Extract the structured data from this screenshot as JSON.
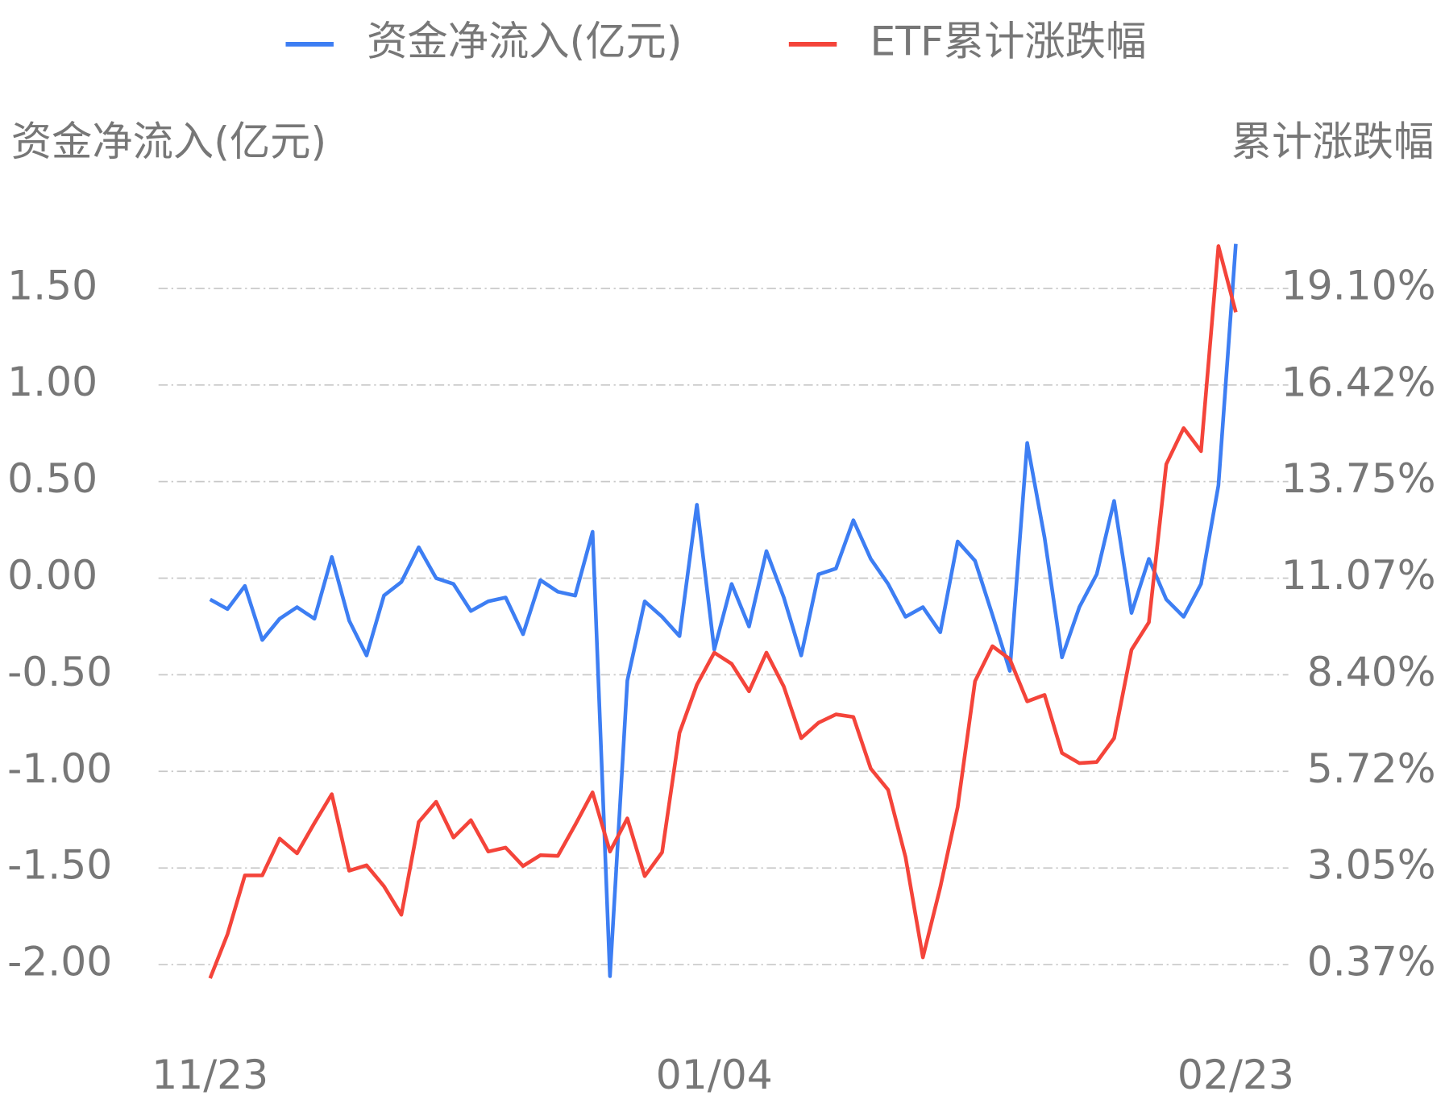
{
  "chart_data": {
    "type": "line",
    "legend": "top",
    "grid": true,
    "y_label": "资金净流入(亿元)",
    "y2_label": "累计涨跌幅",
    "categories": [
      "11/23",
      null,
      null,
      null,
      null,
      null,
      null,
      null,
      null,
      null,
      null,
      null,
      null,
      null,
      null,
      null,
      null,
      null,
      null,
      null,
      null,
      null,
      null,
      null,
      null,
      null,
      null,
      null,
      null,
      "01/04",
      null,
      null,
      null,
      null,
      null,
      null,
      null,
      null,
      null,
      null,
      null,
      null,
      null,
      null,
      null,
      null,
      null,
      null,
      null,
      null,
      null,
      null,
      null,
      null,
      null,
      null,
      null,
      null,
      null,
      "02/23"
    ],
    "ylim": [
      -2.0,
      1.5
    ],
    "yticks": [
      {
        "value": -2.0,
        "label": "-2.00"
      },
      {
        "value": -1.5,
        "label": "-1.50"
      },
      {
        "value": -1.0,
        "label": "-1.00"
      },
      {
        "value": -0.5,
        "label": "-0.50"
      },
      {
        "value": 0,
        "label": "0.00"
      },
      {
        "value": 0.5,
        "label": "0.50"
      },
      {
        "value": 1.0,
        "label": "1.00"
      },
      {
        "value": 1.5,
        "label": "1.50"
      }
    ],
    "y2lim": [
      0.37,
      19.1
    ],
    "y2ticks": [
      {
        "value": 0.37,
        "label": "0.37%"
      },
      {
        "value": 3.05,
        "label": "3.05%"
      },
      {
        "value": 5.72,
        "label": "5.72%"
      },
      {
        "value": 8.4,
        "label": "8.40%"
      },
      {
        "value": 11.07,
        "label": "11.07%"
      },
      {
        "value": 13.75,
        "label": "13.75%"
      },
      {
        "value": 16.42,
        "label": "16.42%"
      },
      {
        "value": 19.1,
        "label": "19.10%"
      }
    ],
    "series": [
      {
        "name": "资金净流入(亿元)",
        "color": "#3d7ef3",
        "values": [
          -0.11,
          -0.16,
          -0.04,
          -0.32,
          -0.21,
          -0.15,
          -0.21,
          0.11,
          -0.22,
          -0.4,
          -0.09,
          -0.02,
          0.16,
          0.0,
          -0.03,
          -0.17,
          -0.12,
          -0.1,
          -0.29,
          -0.01,
          -0.07,
          -0.09,
          0.24,
          -2.06,
          -0.53,
          -0.12,
          -0.2,
          -0.3,
          0.38,
          -0.37,
          -0.03,
          -0.25,
          0.14,
          -0.1,
          -0.4,
          0.02,
          0.05,
          0.3,
          0.1,
          -0.03,
          -0.2,
          -0.15,
          -0.28,
          0.19,
          0.09,
          -0.19,
          -0.48,
          0.7,
          0.21,
          -0.41,
          -0.15,
          0.02,
          0.4,
          -0.18,
          0.1,
          -0.11,
          -0.2,
          -0.03,
          0.48,
          1.73
        ]
      },
      {
        "name": "ETF累计涨跌幅",
        "color": "#f4443a",
        "axis": "y2",
        "values": [
          -0.01,
          1.21,
          2.84,
          2.84,
          3.86,
          3.45,
          4.29,
          5.09,
          2.97,
          3.12,
          2.54,
          1.75,
          4.32,
          4.88,
          3.89,
          4.37,
          3.5,
          3.61,
          3.1,
          3.4,
          3.38,
          4.24,
          5.14,
          3.5,
          4.42,
          2.82,
          3.48,
          6.79,
          8.12,
          9.01,
          8.7,
          7.94,
          9.01,
          8.07,
          6.64,
          7.07,
          7.3,
          7.23,
          5.8,
          5.21,
          3.35,
          0.57,
          2.51,
          4.73,
          8.22,
          9.19,
          8.83,
          7.66,
          7.84,
          6.23,
          5.95,
          5.98,
          6.64,
          9.09,
          9.85,
          14.23,
          15.23,
          14.59,
          20.27,
          18.44
        ]
      }
    ]
  }
}
